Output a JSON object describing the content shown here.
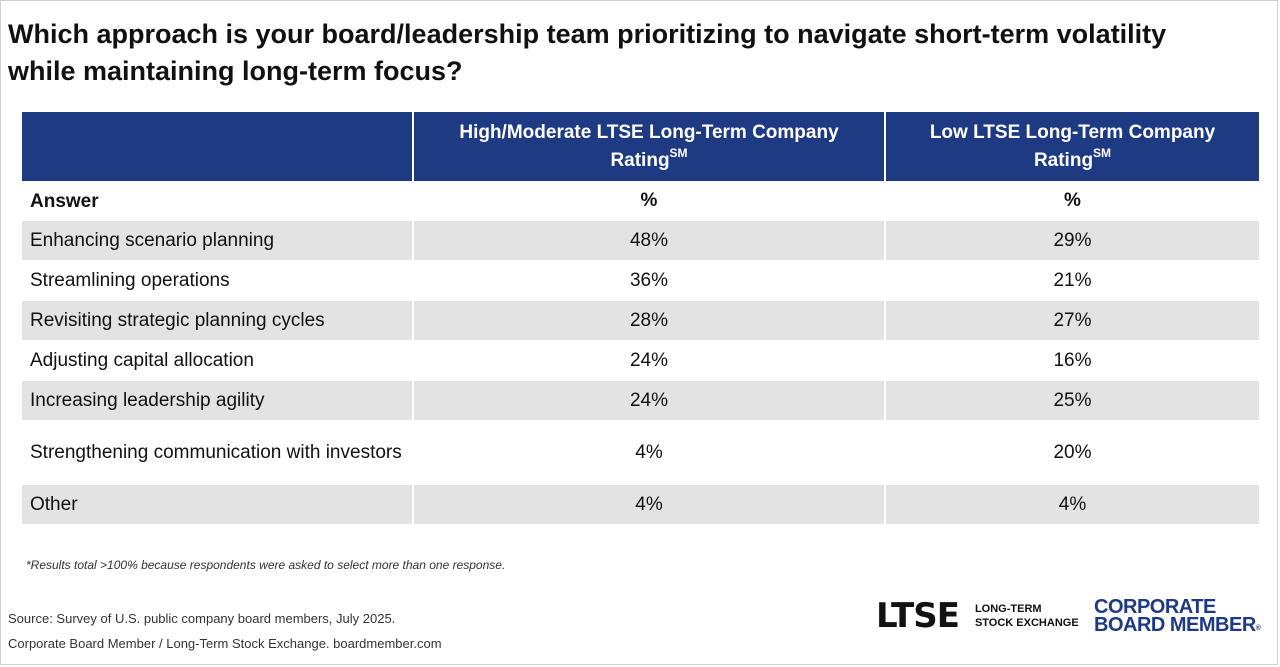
{
  "title": "Which approach is your board/leadership team prioritizing to navigate short-term volatility while maintaining long-term focus?",
  "chart_data": {
    "type": "table",
    "columns": [
      {
        "label": "High/Moderate LTSE Long-Term Company Rating",
        "superscript": "SM"
      },
      {
        "label": "Low LTSE Long-Term Company Rating",
        "superscript": "SM"
      }
    ],
    "header_row": {
      "label": "Answer",
      "col1": "%",
      "col2": "%"
    },
    "rows": [
      {
        "label": "Enhancing scenario planning",
        "values": [
          "48%",
          "29%"
        ]
      },
      {
        "label": "Streamlining operations",
        "values": [
          "36%",
          "21%"
        ]
      },
      {
        "label": "Revisiting strategic planning cycles",
        "values": [
          "28%",
          "27%"
        ]
      },
      {
        "label": "Adjusting capital allocation",
        "values": [
          "24%",
          "16%"
        ]
      },
      {
        "label": "Increasing leadership agility",
        "values": [
          "24%",
          "25%"
        ]
      },
      {
        "label": "Strengthening communication with investors",
        "values": [
          "4%",
          "20%"
        ]
      },
      {
        "label": "Other",
        "values": [
          "4%",
          "4%"
        ]
      }
    ]
  },
  "footnote": "*Results total >100% because respondents were asked to select more than one response.",
  "source_line1": "Source: Survey of U.S. public company board members, July 2025.",
  "source_line2": "Corporate Board Member / Long-Term Stock Exchange. boardmember.com",
  "logos": {
    "ltse_mark": "LTSE",
    "ltse_sub_line1": "LONG-TERM",
    "ltse_sub_line2": "STOCK EXCHANGE",
    "cbm_line1": "CORPORATE",
    "cbm_line2": "BOARD MEMBER",
    "cbm_registered": "®"
  },
  "colors": {
    "header_bg": "#1e3a82",
    "row_shade": "#e3e3e3",
    "brand_blue": "#1e3a82"
  }
}
